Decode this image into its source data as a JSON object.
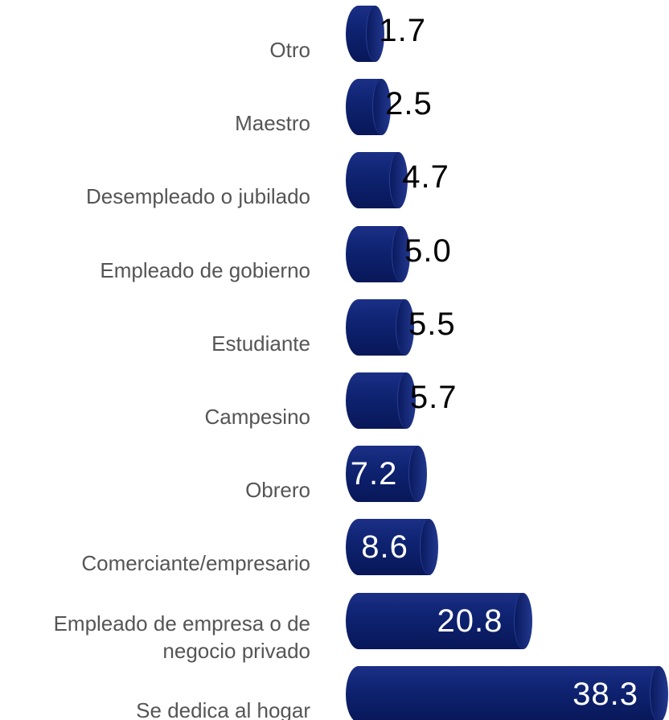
{
  "chart_data": {
    "type": "bar",
    "orientation": "horizontal",
    "categories": [
      "Otro",
      "Maestro",
      "Desempleado o jubilado",
      "Empleado de gobierno",
      "Estudiante",
      "Campesino",
      "Obrero",
      "Comerciante/empresario",
      "Empleado de empresa o de negocio privado",
      "Se dedica al hogar"
    ],
    "values": [
      1.7,
      2.5,
      4.7,
      5.0,
      5.5,
      5.7,
      7.2,
      8.6,
      20.8,
      38.3
    ],
    "value_labels": [
      "1.7",
      "2.5",
      "4.7",
      "5.0",
      "5.5",
      "5.7",
      "7.2",
      "8.6",
      "20.8",
      "38.3"
    ],
    "color": "#0e2270"
  }
}
